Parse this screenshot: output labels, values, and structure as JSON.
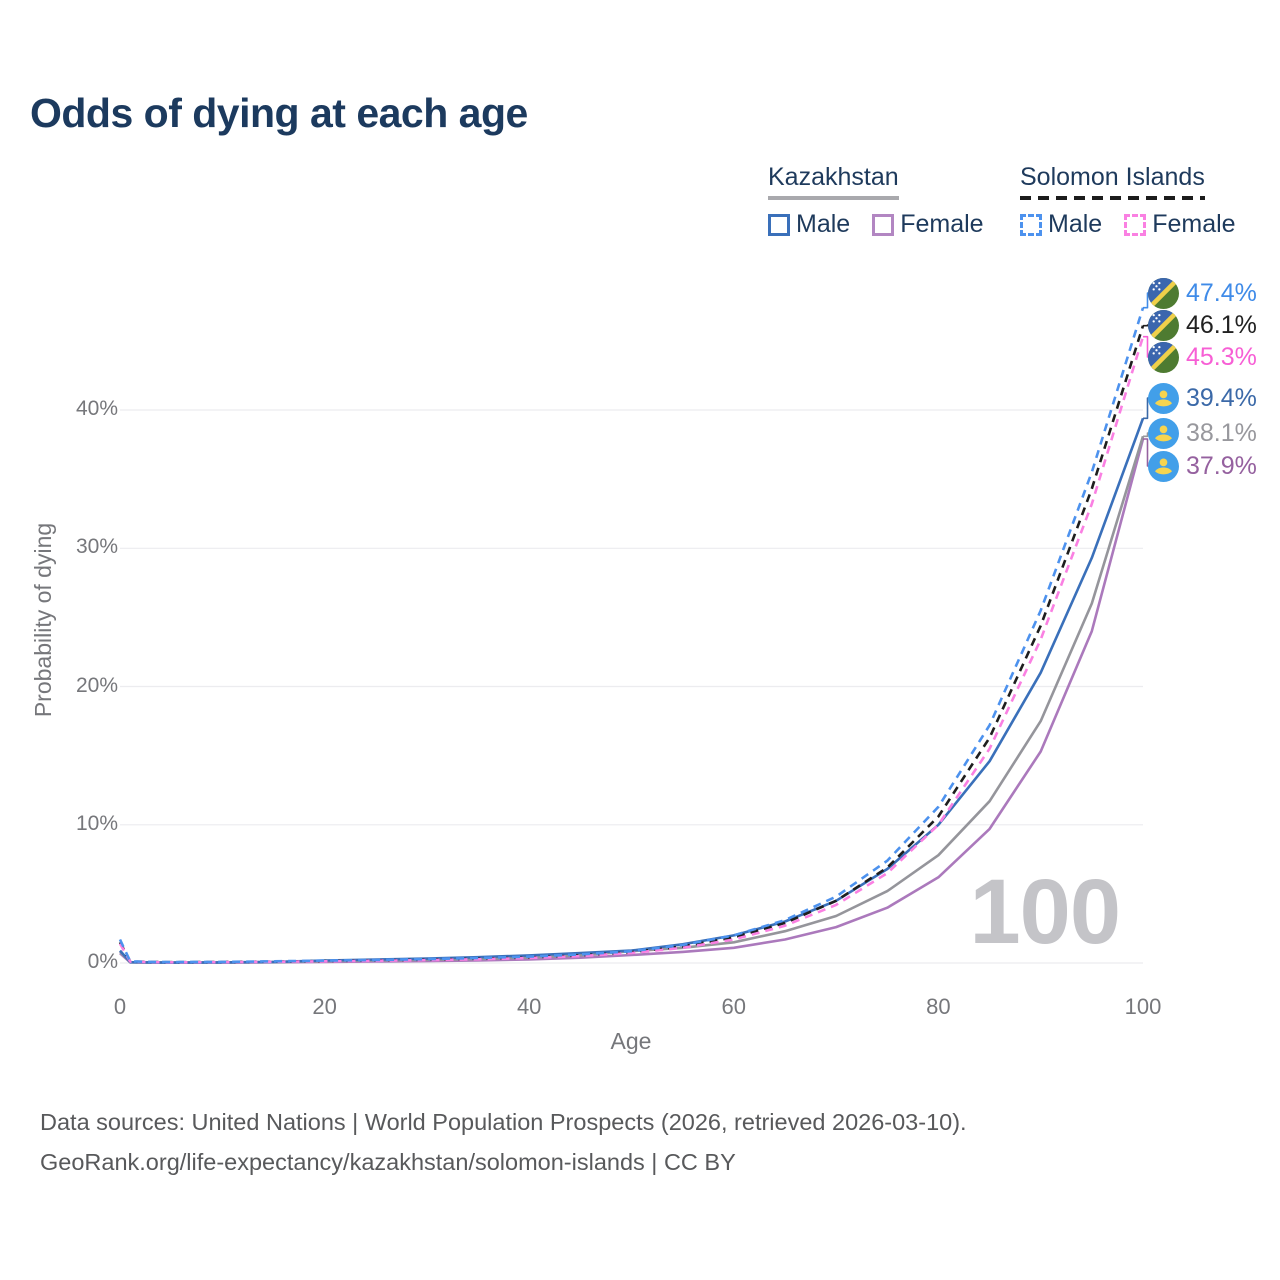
{
  "title": "Odds of dying at each age",
  "legend": {
    "groups": [
      {
        "title": "Kazakhstan",
        "line_style": "solid",
        "underline_color": "#a9a9ad",
        "items": [
          {
            "label": "Male",
            "color": "#3a70ba",
            "dashed": false
          },
          {
            "label": "Female",
            "color": "#b286c2",
            "dashed": false
          }
        ]
      },
      {
        "title": "Solomon Islands",
        "line_style": "dashed",
        "underline_color": "#1c1c1c",
        "items": [
          {
            "label": "Male",
            "color": "#4d92ee",
            "dashed": true
          },
          {
            "label": "Female",
            "color": "#fa80e2",
            "dashed": true
          }
        ]
      }
    ]
  },
  "chart_data": {
    "type": "line",
    "title": "Odds of dying at each age",
    "xlabel": "Age",
    "ylabel": "Probability of dying",
    "xlim": [
      0,
      100
    ],
    "ylim": [
      0,
      48.7
    ],
    "grid": "horizontal-only",
    "legend_position": "top-right",
    "watermark": "100",
    "xticks": [
      {
        "value": 0,
        "label": "0"
      },
      {
        "value": 20,
        "label": "20"
      },
      {
        "value": 40,
        "label": "40"
      },
      {
        "value": 60,
        "label": "60"
      },
      {
        "value": 80,
        "label": "80"
      },
      {
        "value": 100,
        "label": "100"
      }
    ],
    "yticks": [
      {
        "value": 0,
        "label": "0%"
      },
      {
        "value": 10,
        "label": "10%"
      },
      {
        "value": 20,
        "label": "20%"
      },
      {
        "value": 30,
        "label": "30%"
      },
      {
        "value": 40,
        "label": "40%"
      }
    ],
    "ages": [
      0,
      1,
      3,
      5,
      10,
      15,
      20,
      25,
      30,
      35,
      40,
      45,
      50,
      55,
      60,
      65,
      70,
      75,
      80,
      85,
      90,
      95,
      100
    ],
    "unit": "percent",
    "series": [
      {
        "id": "kz_female",
        "name": "Kazakhstan Female",
        "color": "#ab79bc",
        "dashed": false,
        "values": [
          0.7,
          0.05,
          0.03,
          0.02,
          0.03,
          0.05,
          0.08,
          0.11,
          0.14,
          0.19,
          0.26,
          0.38,
          0.58,
          0.8,
          1.1,
          1.7,
          2.6,
          4.0,
          6.2,
          9.7,
          15.3,
          24.0,
          37.9
        ]
      },
      {
        "id": "kz_total",
        "name": "Kazakhstan Total",
        "color": "#95959b",
        "dashed": false,
        "values": [
          0.8,
          0.05,
          0.03,
          0.03,
          0.03,
          0.06,
          0.13,
          0.18,
          0.23,
          0.3,
          0.4,
          0.56,
          0.85,
          1.1,
          1.5,
          2.3,
          3.4,
          5.2,
          7.8,
          11.7,
          17.5,
          26.0,
          38.1
        ]
      },
      {
        "id": "kz_male",
        "name": "Kazakhstan Male",
        "color": "#3a70ba",
        "dashed": false,
        "values": [
          0.9,
          0.06,
          0.04,
          0.03,
          0.04,
          0.08,
          0.18,
          0.25,
          0.32,
          0.42,
          0.55,
          0.72,
          0.9,
          1.35,
          2.0,
          3.0,
          4.5,
          6.8,
          10.0,
          14.6,
          21.0,
          29.3,
          39.4
        ]
      },
      {
        "id": "si_total",
        "name": "Solomon Islands Total",
        "color": "#1e1e1e",
        "dashed": true,
        "values": [
          1.5,
          0.11,
          0.07,
          0.06,
          0.07,
          0.1,
          0.14,
          0.19,
          0.24,
          0.31,
          0.4,
          0.55,
          0.78,
          1.2,
          1.85,
          2.9,
          4.5,
          6.9,
          10.6,
          16.3,
          24.4,
          34.3,
          46.1
        ]
      },
      {
        "id": "si_female",
        "name": "Solomon Islands Female",
        "color": "#fa80e2",
        "dashed": true,
        "values": [
          1.4,
          0.1,
          0.06,
          0.05,
          0.06,
          0.09,
          0.12,
          0.16,
          0.21,
          0.27,
          0.36,
          0.5,
          0.72,
          1.1,
          1.7,
          2.7,
          4.2,
          6.5,
          10.0,
          15.5,
          23.4,
          33.2,
          45.3
        ]
      },
      {
        "id": "si_male",
        "name": "Solomon Islands Male",
        "color": "#4d92ee",
        "dashed": true,
        "values": [
          1.7,
          0.12,
          0.08,
          0.07,
          0.08,
          0.12,
          0.17,
          0.22,
          0.28,
          0.36,
          0.46,
          0.62,
          0.85,
          1.3,
          2.0,
          3.1,
          4.8,
          7.4,
          11.3,
          17.2,
          25.5,
          35.5,
          47.4
        ]
      }
    ],
    "end_labels": [
      {
        "value": "47.4%",
        "series": "si_male",
        "flag": "solomon-islands",
        "color": "#3f8be8"
      },
      {
        "value": "46.1%",
        "series": "si_total",
        "flag": "solomon-islands",
        "color": "#212121"
      },
      {
        "value": "45.3%",
        "series": "si_female",
        "flag": "solomon-islands",
        "color": "#f75fd5"
      },
      {
        "value": "39.4%",
        "series": "kz_male",
        "flag": "kazakhstan",
        "color": "#3b69a8"
      },
      {
        "value": "38.1%",
        "series": "kz_total",
        "flag": "kazakhstan",
        "color": "#98989d"
      },
      {
        "value": "37.9%",
        "series": "kz_female",
        "flag": "kazakhstan",
        "color": "#95619f"
      }
    ]
  },
  "footer": {
    "line1": "Data sources: United Nations | World Population Prospects (2026, retrieved 2026-03-10).",
    "line2": "GeoRank.org/life-expectancy/kazakhstan/solomon-islands | CC BY"
  }
}
